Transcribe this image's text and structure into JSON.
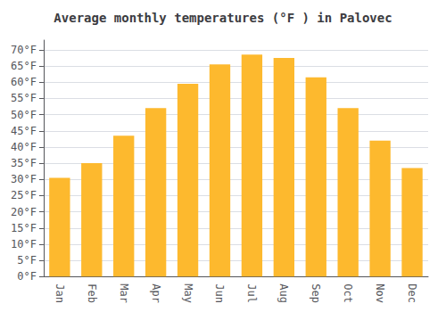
{
  "chart_data": {
    "type": "bar",
    "title": "Average monthly temperatures (°F ) in Palovec",
    "categories": [
      "Jan",
      "Feb",
      "Mar",
      "Apr",
      "May",
      "Jun",
      "Jul",
      "Aug",
      "Sep",
      "Oct",
      "Nov",
      "Dec"
    ],
    "values": [
      30.5,
      35.0,
      43.5,
      52.0,
      59.5,
      65.5,
      68.5,
      67.5,
      61.5,
      52.0,
      42.0,
      33.5
    ],
    "color": "#FDB92E",
    "ylim": [
      0,
      73
    ],
    "yticks": [
      {
        "value": 0,
        "label": "0°F"
      },
      {
        "value": 5,
        "label": "5°F"
      },
      {
        "value": 10,
        "label": "10°F"
      },
      {
        "value": 15,
        "label": "15°F"
      },
      {
        "value": 20,
        "label": "20°F"
      },
      {
        "value": 25,
        "label": "25°F"
      },
      {
        "value": 30,
        "label": "30°F"
      },
      {
        "value": 35,
        "label": "35°F"
      },
      {
        "value": 40,
        "label": "40°F"
      },
      {
        "value": 45,
        "label": "45°F"
      },
      {
        "value": 50,
        "label": "50°F"
      },
      {
        "value": 55,
        "label": "55°F"
      },
      {
        "value": 60,
        "label": "60°F"
      },
      {
        "value": 65,
        "label": "65°F"
      },
      {
        "value": 70,
        "label": "70°F"
      }
    ],
    "grid": true
  }
}
